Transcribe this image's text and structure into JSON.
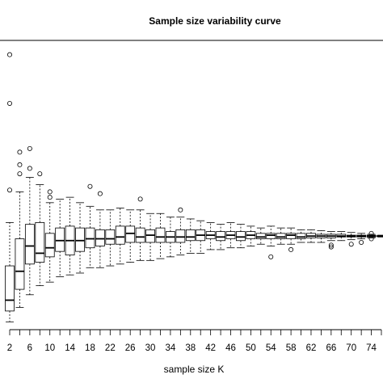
{
  "chart_data": {
    "type": "boxplot",
    "title": "Sample size variability curve",
    "xlabel": "sample size K",
    "ylabel": "",
    "x_tick_labels": [
      "2",
      "6",
      "10",
      "14",
      "18",
      "22",
      "26",
      "30",
      "34",
      "38",
      "42",
      "46",
      "50",
      "54",
      "58",
      "62",
      "66",
      "70",
      "74"
    ],
    "categories": [
      2,
      4,
      6,
      8,
      10,
      12,
      14,
      16,
      18,
      20,
      22,
      24,
      26,
      28,
      30,
      32,
      34,
      36,
      38,
      40,
      42,
      44,
      46,
      48,
      50,
      52,
      54,
      56,
      58,
      60,
      62,
      64,
      66,
      68,
      70,
      72,
      74,
      76
    ],
    "boxes": [
      {
        "k": 2,
        "low": 0.0,
        "q1": 6.0,
        "median": 12.0,
        "q3": 31.0,
        "high": 55.0,
        "outliers": [
          73.0,
          121.0,
          148.0
        ]
      },
      {
        "k": 4,
        "low": 8.0,
        "q1": 18.0,
        "median": 28.0,
        "q3": 46.0,
        "high": 72.0,
        "outliers": [
          82.0,
          87.0,
          94.0
        ]
      },
      {
        "k": 6,
        "low": 15.0,
        "q1": 32.0,
        "median": 42.0,
        "q3": 54.0,
        "high": 80.0,
        "outliers": [
          85.0,
          96.0
        ]
      },
      {
        "k": 8,
        "low": 20.0,
        "q1": 33.0,
        "median": 38.0,
        "q3": 55.0,
        "high": 76.0,
        "outliers": [
          82.0
        ]
      },
      {
        "k": 10,
        "low": 22.0,
        "q1": 36.0,
        "median": 41.0,
        "q3": 49.0,
        "high": 66.0,
        "outliers": [
          69.0,
          72.0
        ]
      },
      {
        "k": 12,
        "low": 25.0,
        "q1": 39.0,
        "median": 45.0,
        "q3": 52.0,
        "high": 68.0,
        "outliers": []
      },
      {
        "k": 14,
        "low": 26.0,
        "q1": 37.0,
        "median": 45.0,
        "q3": 53.0,
        "high": 69.0,
        "outliers": []
      },
      {
        "k": 16,
        "low": 27.0,
        "q1": 39.0,
        "median": 45.0,
        "q3": 52.0,
        "high": 66.0,
        "outliers": []
      },
      {
        "k": 18,
        "low": 30.0,
        "q1": 41.0,
        "median": 46.0,
        "q3": 52.0,
        "high": 64.0,
        "outliers": [
          75.0
        ]
      },
      {
        "k": 20,
        "low": 30.0,
        "q1": 42.0,
        "median": 46.0,
        "q3": 51.0,
        "high": 62.0,
        "outliers": [
          71.0
        ]
      },
      {
        "k": 22,
        "low": 31.0,
        "q1": 43.0,
        "median": 46.0,
        "q3": 51.0,
        "high": 62.0,
        "outliers": []
      },
      {
        "k": 24,
        "low": 32.0,
        "q1": 43.0,
        "median": 47.0,
        "q3": 53.0,
        "high": 63.0,
        "outliers": []
      },
      {
        "k": 26,
        "low": 33.0,
        "q1": 44.0,
        "median": 49.0,
        "q3": 53.0,
        "high": 62.0,
        "outliers": []
      },
      {
        "k": 28,
        "low": 34.0,
        "q1": 44.0,
        "median": 47.0,
        "q3": 52.0,
        "high": 62.0,
        "outliers": [
          68.0
        ]
      },
      {
        "k": 30,
        "low": 34.0,
        "q1": 44.0,
        "median": 48.0,
        "q3": 51.0,
        "high": 60.0,
        "outliers": []
      },
      {
        "k": 32,
        "low": 35.0,
        "q1": 44.0,
        "median": 47.0,
        "q3": 52.0,
        "high": 60.0,
        "outliers": []
      },
      {
        "k": 34,
        "low": 36.0,
        "q1": 44.0,
        "median": 47.0,
        "q3": 50.0,
        "high": 58.0,
        "outliers": []
      },
      {
        "k": 36,
        "low": 37.0,
        "q1": 44.0,
        "median": 47.0,
        "q3": 51.0,
        "high": 58.0,
        "outliers": [
          62.0
        ]
      },
      {
        "k": 38,
        "low": 38.0,
        "q1": 45.0,
        "median": 47.0,
        "q3": 51.0,
        "high": 57.0,
        "outliers": []
      },
      {
        "k": 40,
        "low": 38.0,
        "q1": 45.0,
        "median": 48.0,
        "q3": 51.0,
        "high": 56.0,
        "outliers": []
      },
      {
        "k": 42,
        "low": 40.0,
        "q1": 46.0,
        "median": 48.0,
        "q3": 50.0,
        "high": 55.0,
        "outliers": []
      },
      {
        "k": 44,
        "low": 40.0,
        "q1": 45.0,
        "median": 47.0,
        "q3": 50.0,
        "high": 54.0,
        "outliers": []
      },
      {
        "k": 46,
        "low": 41.0,
        "q1": 46.0,
        "median": 48.0,
        "q3": 50.0,
        "high": 55.0,
        "outliers": []
      },
      {
        "k": 48,
        "low": 41.0,
        "q1": 45.0,
        "median": 47.0,
        "q3": 50.0,
        "high": 54.0,
        "outliers": []
      },
      {
        "k": 50,
        "low": 42.0,
        "q1": 46.0,
        "median": 48.0,
        "q3": 50.0,
        "high": 53.0,
        "outliers": []
      },
      {
        "k": 52,
        "low": 43.0,
        "q1": 46.0,
        "median": 47.0,
        "q3": 49.0,
        "high": 52.0,
        "outliers": []
      },
      {
        "k": 54,
        "low": 42.0,
        "q1": 46.0,
        "median": 48.0,
        "q3": 49.0,
        "high": 53.0,
        "outliers": [
          36.0
        ]
      },
      {
        "k": 56,
        "low": 43.0,
        "q1": 46.0,
        "median": 47.0,
        "q3": 49.0,
        "high": 52.0,
        "outliers": []
      },
      {
        "k": 58,
        "low": 43.0,
        "q1": 46.0,
        "median": 48.0,
        "q3": 49.0,
        "high": 52.0,
        "outliers": [
          40.0
        ]
      },
      {
        "k": 60,
        "low": 44.0,
        "q1": 46.0,
        "median": 47.0,
        "q3": 49.0,
        "high": 51.0,
        "outliers": []
      },
      {
        "k": 62,
        "low": 44.0,
        "q1": 46.5,
        "median": 47.5,
        "q3": 49.0,
        "high": 51.0,
        "outliers": []
      },
      {
        "k": 64,
        "low": 44.0,
        "q1": 46.5,
        "median": 47.5,
        "q3": 48.5,
        "high": 50.5,
        "outliers": []
      },
      {
        "k": 66,
        "low": 45.0,
        "q1": 46.5,
        "median": 47.5,
        "q3": 48.5,
        "high": 50.0,
        "outliers": [
          41.5,
          42.5
        ]
      },
      {
        "k": 68,
        "low": 45.0,
        "q1": 47.0,
        "median": 47.5,
        "q3": 48.5,
        "high": 50.0,
        "outliers": []
      },
      {
        "k": 70,
        "low": 45.5,
        "q1": 47.0,
        "median": 47.5,
        "q3": 48.0,
        "high": 49.5,
        "outliers": [
          43.0
        ]
      },
      {
        "k": 72,
        "low": 46.0,
        "q1": 47.0,
        "median": 47.5,
        "q3": 48.0,
        "high": 49.0,
        "outliers": [
          44.0
        ]
      },
      {
        "k": 74,
        "low": 46.5,
        "q1": 47.0,
        "median": 47.5,
        "q3": 48.0,
        "high": 48.5,
        "outliers": [
          46.0,
          49.0
        ]
      },
      {
        "k": 76,
        "low": 47.0,
        "q1": 47.3,
        "median": 47.5,
        "q3": 47.7,
        "high": 48.0,
        "outliers": []
      }
    ],
    "ylim": [
      -3,
      155
    ],
    "grid": false,
    "colors": {
      "box_fill": "#ffffff",
      "stroke": "#000000",
      "median": "#000000",
      "whisker": "#000000"
    }
  }
}
